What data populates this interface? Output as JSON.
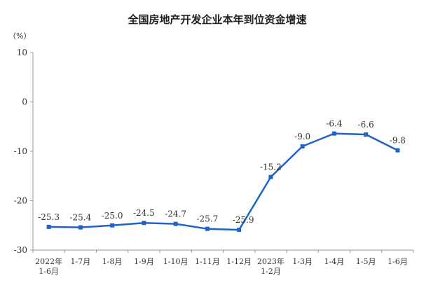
{
  "chart_data": {
    "type": "line",
    "title": "全国房地产开发企业本年到位资金增速",
    "unit_label": "（%）",
    "categories": [
      [
        "2022年",
        "1-6月"
      ],
      [
        "1-7月"
      ],
      [
        "1-8月"
      ],
      [
        "1-9月"
      ],
      [
        "1-10月"
      ],
      [
        "1-11月"
      ],
      [
        "1-12月"
      ],
      [
        "2023年",
        "1-2月"
      ],
      [
        "1-3月"
      ],
      [
        "1-4月"
      ],
      [
        "1-5月"
      ],
      [
        "1-6月"
      ]
    ],
    "values": [
      -25.3,
      -25.4,
      -25.0,
      -24.5,
      -24.7,
      -25.7,
      -25.9,
      -15.2,
      -9.0,
      -6.4,
      -6.6,
      -9.8
    ],
    "value_labels": [
      "-25.3",
      "-25.4",
      "-25.0",
      "-24.5",
      "-24.7",
      "-25.7",
      "-25.9",
      "-15.2",
      "-9.0",
      "-6.4",
      "-6.6",
      "-9.8"
    ],
    "ylim": [
      -30,
      10
    ],
    "yticks": [
      10,
      0,
      -10,
      -20,
      -30
    ],
    "grid": false,
    "legend": "none",
    "colors": {
      "line": "#1f63c6",
      "axis": "#999999"
    }
  }
}
